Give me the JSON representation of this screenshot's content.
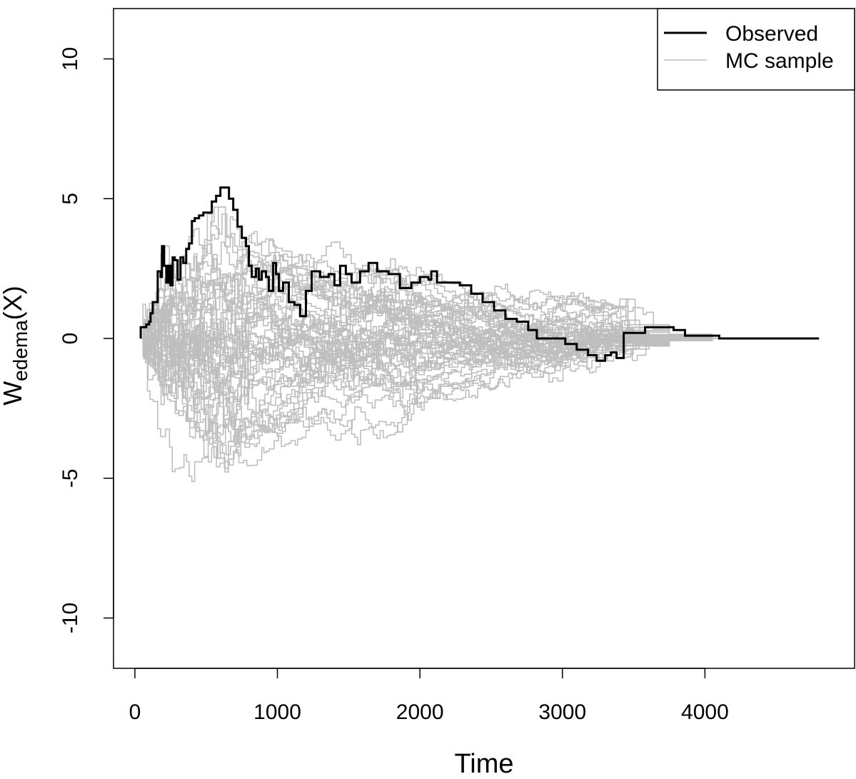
{
  "chart_data": {
    "type": "line",
    "title": "",
    "xlabel": "Time",
    "ylabel_base": "W",
    "ylabel_sub": "edema",
    "ylabel_tail": "(X)",
    "xlim": [
      -150,
      5050
    ],
    "ylim": [
      -11.8,
      11.8
    ],
    "xticks": [
      0,
      1000,
      2000,
      3000,
      4000
    ],
    "yticks": [
      -10,
      -5,
      0,
      5,
      10
    ],
    "x_tick_labels": [
      "0",
      "1000",
      "2000",
      "3000",
      "4000"
    ],
    "y_tick_labels": [
      "-10",
      "-5",
      "0",
      "5",
      "10"
    ],
    "grid": false,
    "legend_position": "top-right",
    "colors": {
      "observed": "#000000",
      "mc": "#bebebe"
    },
    "legend": [
      {
        "label": "Observed",
        "color": "#000000"
      },
      {
        "label": "MC sample",
        "color": "#bebebe"
      }
    ],
    "series": [
      {
        "name": "Observed",
        "points": [
          [
            41,
            0
          ],
          [
            41,
            0.4
          ],
          [
            80,
            0.5
          ],
          [
            100,
            0.6
          ],
          [
            110,
            0.9
          ],
          [
            125,
            1.3
          ],
          [
            140,
            1.3
          ],
          [
            160,
            2.4
          ],
          [
            180,
            2.2
          ],
          [
            190,
            3.3
          ],
          [
            205,
            2.6
          ],
          [
            220,
            2.0
          ],
          [
            235,
            2.6
          ],
          [
            250,
            1.9
          ],
          [
            265,
            2.9
          ],
          [
            280,
            2.8
          ],
          [
            300,
            2.1
          ],
          [
            320,
            2.9
          ],
          [
            340,
            2.7
          ],
          [
            360,
            3.2
          ],
          [
            380,
            3.4
          ],
          [
            400,
            4.2
          ],
          [
            420,
            4.3
          ],
          [
            450,
            4.4
          ],
          [
            480,
            4.5
          ],
          [
            510,
            4.5
          ],
          [
            540,
            4.9
          ],
          [
            570,
            5.1
          ],
          [
            600,
            5.4
          ],
          [
            630,
            5.4
          ],
          [
            660,
            5.0
          ],
          [
            690,
            4.6
          ],
          [
            720,
            4.0
          ],
          [
            750,
            3.6
          ],
          [
            780,
            3.3
          ],
          [
            800,
            2.6
          ],
          [
            820,
            2.2
          ],
          [
            850,
            2.5
          ],
          [
            870,
            2.1
          ],
          [
            890,
            2.4
          ],
          [
            920,
            2.2
          ],
          [
            940,
            1.7
          ],
          [
            970,
            2.7
          ],
          [
            990,
            2.3
          ],
          [
            1010,
            1.7
          ],
          [
            1040,
            2.0
          ],
          [
            1080,
            1.3
          ],
          [
            1120,
            1.2
          ],
          [
            1160,
            0.8
          ],
          [
            1200,
            1.7
          ],
          [
            1240,
            2.4
          ],
          [
            1300,
            2.2
          ],
          [
            1360,
            2.3
          ],
          [
            1400,
            1.9
          ],
          [
            1440,
            2.6
          ],
          [
            1480,
            2.3
          ],
          [
            1520,
            2.0
          ],
          [
            1580,
            2.4
          ],
          [
            1640,
            2.7
          ],
          [
            1700,
            2.4
          ],
          [
            1780,
            2.3
          ],
          [
            1860,
            1.8
          ],
          [
            1940,
            2.0
          ],
          [
            2000,
            2.2
          ],
          [
            2060,
            2.1
          ],
          [
            2080,
            2.4
          ],
          [
            2120,
            2.0
          ],
          [
            2200,
            2.0
          ],
          [
            2280,
            1.9
          ],
          [
            2360,
            1.6
          ],
          [
            2440,
            1.3
          ],
          [
            2520,
            1.0
          ],
          [
            2600,
            0.7
          ],
          [
            2680,
            0.6
          ],
          [
            2760,
            0.3
          ],
          [
            2820,
            0.0
          ],
          [
            2960,
            0.0
          ],
          [
            3020,
            -0.2
          ],
          [
            3100,
            -0.4
          ],
          [
            3180,
            -0.6
          ],
          [
            3240,
            -0.8
          ],
          [
            3300,
            -0.6
          ],
          [
            3340,
            -0.5
          ],
          [
            3380,
            -0.7
          ],
          [
            3430,
            -0.7
          ],
          [
            3430,
            0.2
          ],
          [
            3560,
            0.2
          ],
          [
            3580,
            0.4
          ],
          [
            3780,
            0.3
          ],
          [
            3860,
            0.1
          ],
          [
            4000,
            0.1
          ],
          [
            4100,
            0.0
          ],
          [
            4800,
            0.0
          ]
        ]
      }
    ],
    "mc_series_count": 50,
    "mc_time_range": [
      41,
      4800
    ],
    "mc_spread_range": [
      -6.5,
      4.7
    ]
  }
}
